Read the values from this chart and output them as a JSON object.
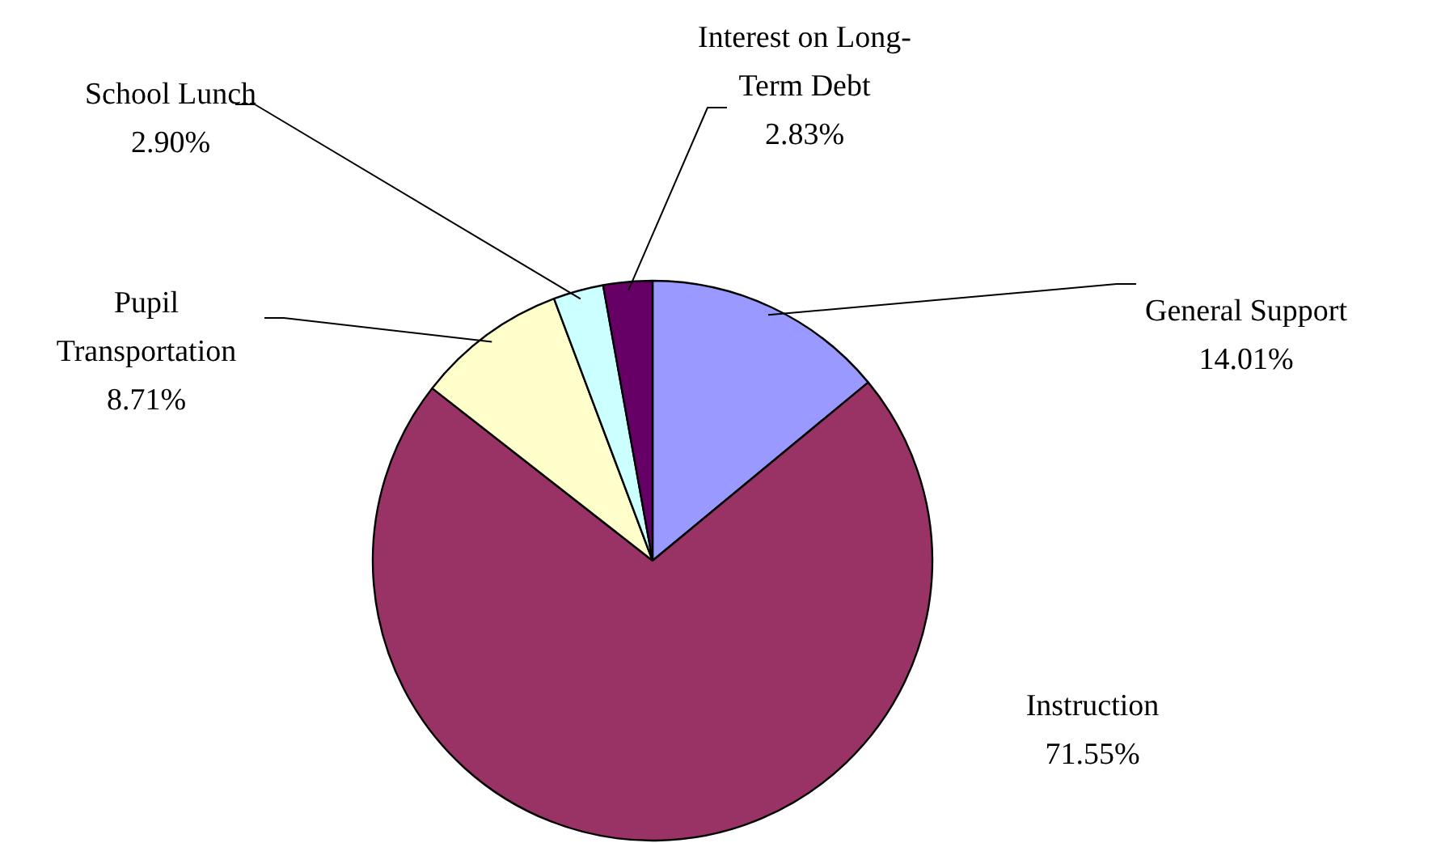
{
  "chart_data": {
    "type": "pie",
    "categories": [
      "General Support",
      "Instruction",
      "Pupil Transportation",
      "School Lunch",
      "Interest on Long-Term Debt"
    ],
    "values": [
      14.01,
      71.55,
      8.71,
      2.9,
      2.83
    ],
    "colors": [
      "#9999ff",
      "#993366",
      "#ffffcc",
      "#ccffff",
      "#660066"
    ],
    "value_labels": [
      "14.01%",
      "71.55%",
      "8.71%",
      "2.90%",
      "2.83%"
    ]
  }
}
